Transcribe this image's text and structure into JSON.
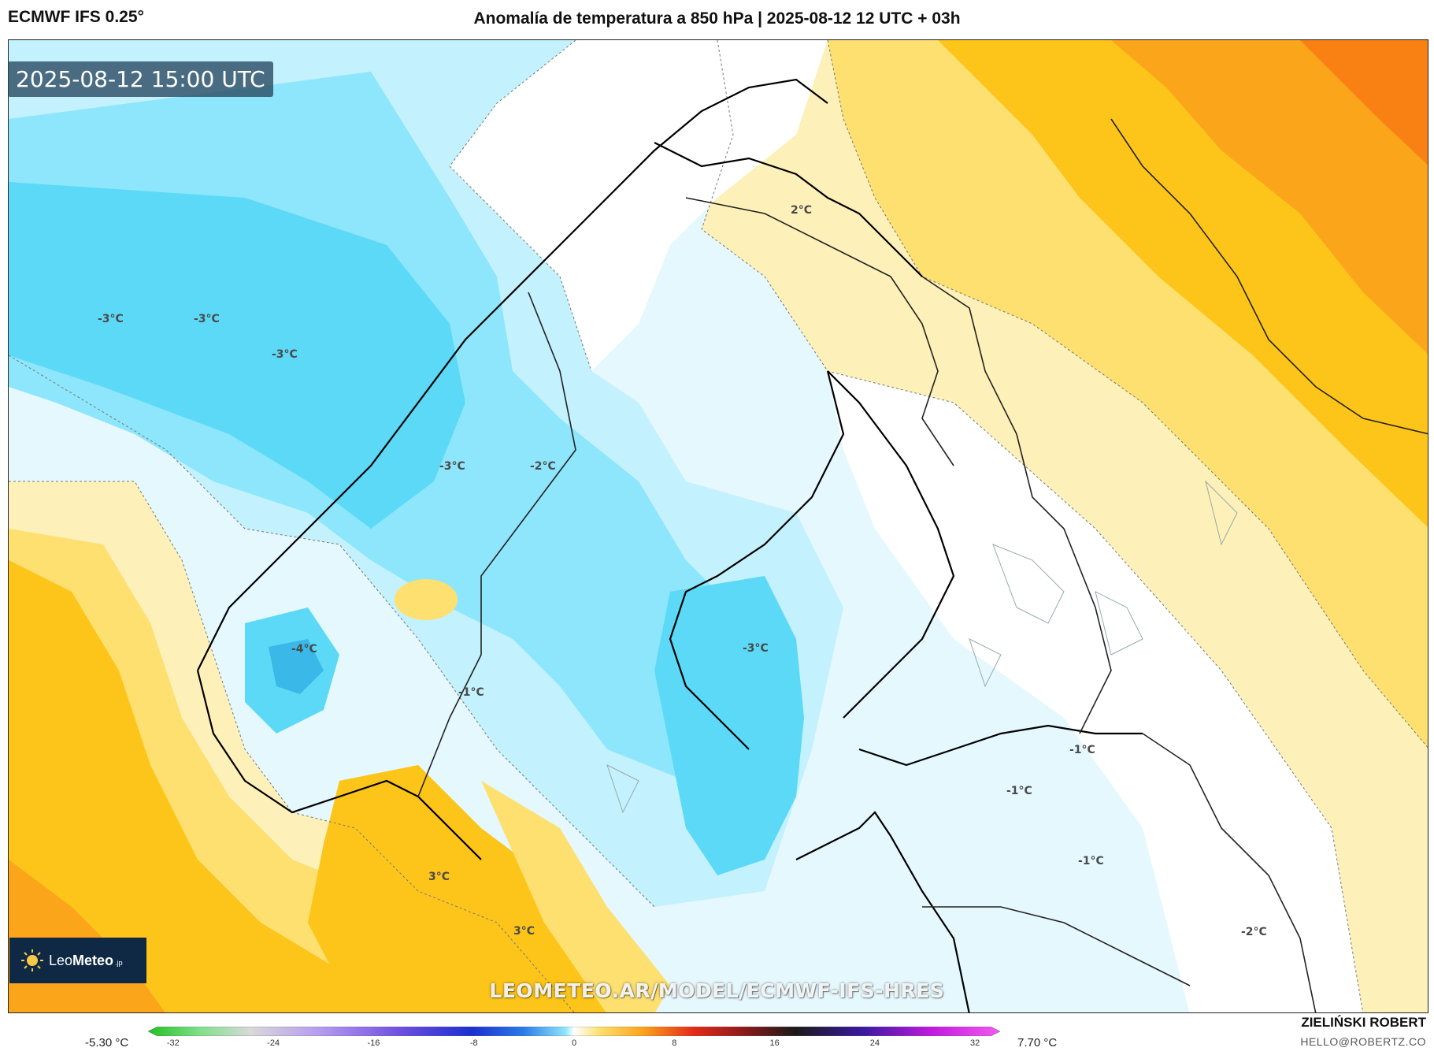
{
  "header": {
    "model": "ECMWF IFS 0.25°",
    "title": "Anomalía de temperatura a 850 hPa | 2025-08-12 12 UTC + 03h"
  },
  "map": {
    "timestamp": "2025-08-12 15:00 UTC",
    "watermark": "LEOMETEO.AR/MODEL/ECMWF-IFS-HRES",
    "labels": [
      "-3°C",
      "-3°C",
      "-3°C",
      "2°C",
      "-3°C",
      "-2°C",
      "-4°C",
      "-1°C",
      "-3°C",
      "-1°C",
      "-1°C",
      "-1°C",
      "3°C",
      "3°C",
      "-2°C"
    ],
    "colors": {
      "deep_cyan": "#5bd9f7",
      "cyan": "#8de6fb",
      "light_cyan": "#c3f1fd",
      "pale_cyan": "#e4f8fe",
      "white": "#ffffff",
      "pale_yellow": "#fdf0b8",
      "yellow": "#fde070",
      "gold": "#fdc51a",
      "orange": "#fba51a",
      "dark_orange": "#f98012"
    }
  },
  "logo": {
    "brand_light": "Leo",
    "brand_bold": "Meteo",
    "suffix": ".jp",
    "icon": "sun-icon"
  },
  "colorbar": {
    "min_label": "-5.30 °C",
    "max_label": "7.70 °C",
    "ticks": [
      "-32",
      "-24",
      "-16",
      "-8",
      "0",
      "8",
      "16",
      "24",
      "32"
    ],
    "range": [
      -34,
      34
    ]
  },
  "credits": {
    "author": "ZIELIŃSKI ROBERT",
    "email": "HELLO@ROBERTZ.CO"
  }
}
